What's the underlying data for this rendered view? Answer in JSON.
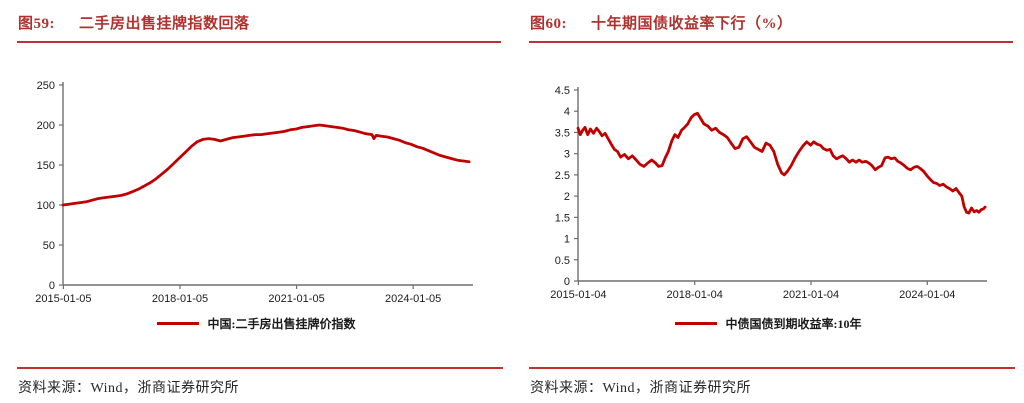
{
  "colors": {
    "accent": "#c00000",
    "title_red": "#b03230",
    "rule_red": "#bd3330",
    "axis": "#6e6e6e",
    "text": "#1c1c1c"
  },
  "figures": [
    {
      "fig_label": "图59:",
      "title": "二手房出售挂牌指数回落",
      "legend": "中国:二手房出售挂牌价指数",
      "source": "资料来源：Wind，浙商证券研究所"
    },
    {
      "fig_label": "图60:",
      "title": "十年期国债收益率下行（%）",
      "legend": "中债国债到期收益率:10年",
      "source": "资料来源：Wind，浙商证券研究所"
    }
  ],
  "chart_data": [
    {
      "type": "line",
      "title": "二手房出售挂牌指数回落",
      "xlabel": "",
      "ylabel": "",
      "grid": false,
      "legend_position": "bottom",
      "xlim": [
        2015.0,
        2025.55
      ],
      "ylim": [
        0,
        250
      ],
      "y_ticks": [
        0,
        50,
        100,
        150,
        200,
        250
      ],
      "x_ticks": [
        {
          "v": 2015.01,
          "label": "2015-01-05"
        },
        {
          "v": 2018.01,
          "label": "2018-01-05"
        },
        {
          "v": 2021.01,
          "label": "2021-01-05"
        },
        {
          "v": 2024.01,
          "label": "2024-01-05"
        }
      ],
      "series": [
        {
          "name": "中国:二手房出售挂牌价指数",
          "color": "#c00000",
          "points": [
            [
              2015.0,
              100
            ],
            [
              2015.15,
              101
            ],
            [
              2015.3,
              102
            ],
            [
              2015.45,
              103
            ],
            [
              2015.6,
              104
            ],
            [
              2015.75,
              106
            ],
            [
              2015.9,
              108
            ],
            [
              2016.05,
              109
            ],
            [
              2016.2,
              110
            ],
            [
              2016.35,
              111
            ],
            [
              2016.5,
              112
            ],
            [
              2016.65,
              114
            ],
            [
              2016.8,
              117
            ],
            [
              2016.95,
              120
            ],
            [
              2017.1,
              124
            ],
            [
              2017.25,
              128
            ],
            [
              2017.4,
              133
            ],
            [
              2017.55,
              139
            ],
            [
              2017.7,
              145
            ],
            [
              2017.85,
              152
            ],
            [
              2018.0,
              159
            ],
            [
              2018.15,
              166
            ],
            [
              2018.3,
              173
            ],
            [
              2018.45,
              179
            ],
            [
              2018.6,
              182
            ],
            [
              2018.75,
              183
            ],
            [
              2018.9,
              182
            ],
            [
              2019.05,
              180
            ],
            [
              2019.2,
              182
            ],
            [
              2019.35,
              184
            ],
            [
              2019.5,
              185
            ],
            [
              2019.65,
              186
            ],
            [
              2019.8,
              187
            ],
            [
              2019.95,
              188
            ],
            [
              2020.1,
              188
            ],
            [
              2020.25,
              189
            ],
            [
              2020.4,
              190
            ],
            [
              2020.55,
              191
            ],
            [
              2020.7,
              192
            ],
            [
              2020.85,
              194
            ],
            [
              2021.0,
              195
            ],
            [
              2021.15,
              197
            ],
            [
              2021.3,
              198
            ],
            [
              2021.45,
              199
            ],
            [
              2021.6,
              200
            ],
            [
              2021.75,
              199
            ],
            [
              2021.9,
              198
            ],
            [
              2022.05,
              197
            ],
            [
              2022.2,
              196
            ],
            [
              2022.35,
              194
            ],
            [
              2022.5,
              193
            ],
            [
              2022.65,
              191
            ],
            [
              2022.8,
              189
            ],
            [
              2022.95,
              188
            ],
            [
              2023.0,
              183
            ],
            [
              2023.06,
              187
            ],
            [
              2023.2,
              186
            ],
            [
              2023.35,
              185
            ],
            [
              2023.5,
              183
            ],
            [
              2023.65,
              181
            ],
            [
              2023.8,
              178
            ],
            [
              2023.95,
              176
            ],
            [
              2024.1,
              173
            ],
            [
              2024.25,
              171
            ],
            [
              2024.4,
              168
            ],
            [
              2024.55,
              165
            ],
            [
              2024.7,
              162
            ],
            [
              2024.85,
              160
            ],
            [
              2025.0,
              158
            ],
            [
              2025.15,
              156
            ],
            [
              2025.3,
              155
            ],
            [
              2025.45,
              154
            ]
          ]
        }
      ]
    },
    {
      "type": "line",
      "title": "十年期国债收益率下行（%）",
      "xlabel": "",
      "ylabel": "",
      "grid": false,
      "legend_position": "bottom",
      "xlim": [
        2015.0,
        2025.55
      ],
      "ylim": [
        0,
        4.5
      ],
      "y_ticks": [
        0,
        0.5,
        1,
        1.5,
        2,
        2.5,
        3,
        3.5,
        4,
        4.5
      ],
      "x_ticks": [
        {
          "v": 2015.01,
          "label": "2015-01-04"
        },
        {
          "v": 2018.01,
          "label": "2018-01-04"
        },
        {
          "v": 2021.01,
          "label": "2021-01-04"
        },
        {
          "v": 2024.01,
          "label": "2024-01-04"
        }
      ],
      "series": [
        {
          "name": "中债国债到期收益率:10年",
          "color": "#c00000",
          "points": [
            [
              2015.0,
              3.6
            ],
            [
              2015.06,
              3.45
            ],
            [
              2015.12,
              3.55
            ],
            [
              2015.18,
              3.62
            ],
            [
              2015.25,
              3.45
            ],
            [
              2015.32,
              3.58
            ],
            [
              2015.4,
              3.48
            ],
            [
              2015.48,
              3.6
            ],
            [
              2015.55,
              3.52
            ],
            [
              2015.62,
              3.42
            ],
            [
              2015.7,
              3.48
            ],
            [
              2015.78,
              3.35
            ],
            [
              2015.86,
              3.22
            ],
            [
              2015.94,
              3.1
            ],
            [
              2016.02,
              3.05
            ],
            [
              2016.1,
              2.92
            ],
            [
              2016.2,
              2.98
            ],
            [
              2016.3,
              2.88
            ],
            [
              2016.4,
              2.95
            ],
            [
              2016.5,
              2.85
            ],
            [
              2016.6,
              2.75
            ],
            [
              2016.7,
              2.7
            ],
            [
              2016.8,
              2.78
            ],
            [
              2016.9,
              2.85
            ],
            [
              2017.0,
              2.78
            ],
            [
              2017.08,
              2.7
            ],
            [
              2017.17,
              2.72
            ],
            [
              2017.25,
              2.9
            ],
            [
              2017.33,
              3.05
            ],
            [
              2017.42,
              3.3
            ],
            [
              2017.5,
              3.45
            ],
            [
              2017.58,
              3.38
            ],
            [
              2017.67,
              3.55
            ],
            [
              2017.75,
              3.62
            ],
            [
              2017.83,
              3.7
            ],
            [
              2017.92,
              3.85
            ],
            [
              2018.0,
              3.92
            ],
            [
              2018.08,
              3.95
            ],
            [
              2018.15,
              3.85
            ],
            [
              2018.25,
              3.7
            ],
            [
              2018.35,
              3.65
            ],
            [
              2018.45,
              3.55
            ],
            [
              2018.55,
              3.6
            ],
            [
              2018.65,
              3.5
            ],
            [
              2018.75,
              3.45
            ],
            [
              2018.85,
              3.38
            ],
            [
              2018.95,
              3.25
            ],
            [
              2019.05,
              3.12
            ],
            [
              2019.15,
              3.15
            ],
            [
              2019.25,
              3.35
            ],
            [
              2019.35,
              3.4
            ],
            [
              2019.45,
              3.28
            ],
            [
              2019.55,
              3.15
            ],
            [
              2019.65,
              3.1
            ],
            [
              2019.75,
              3.05
            ],
            [
              2019.85,
              3.25
            ],
            [
              2019.95,
              3.2
            ],
            [
              2020.05,
              3.05
            ],
            [
              2020.15,
              2.75
            ],
            [
              2020.25,
              2.55
            ],
            [
              2020.32,
              2.5
            ],
            [
              2020.4,
              2.58
            ],
            [
              2020.5,
              2.72
            ],
            [
              2020.6,
              2.9
            ],
            [
              2020.7,
              3.05
            ],
            [
              2020.8,
              3.18
            ],
            [
              2020.9,
              3.28
            ],
            [
              2021.0,
              3.2
            ],
            [
              2021.08,
              3.28
            ],
            [
              2021.17,
              3.22
            ],
            [
              2021.25,
              3.2
            ],
            [
              2021.33,
              3.12
            ],
            [
              2021.42,
              3.08
            ],
            [
              2021.5,
              3.1
            ],
            [
              2021.58,
              2.95
            ],
            [
              2021.67,
              2.88
            ],
            [
              2021.75,
              2.92
            ],
            [
              2021.83,
              2.95
            ],
            [
              2021.92,
              2.88
            ],
            [
              2022.0,
              2.8
            ],
            [
              2022.08,
              2.85
            ],
            [
              2022.17,
              2.8
            ],
            [
              2022.25,
              2.85
            ],
            [
              2022.33,
              2.8
            ],
            [
              2022.42,
              2.82
            ],
            [
              2022.5,
              2.78
            ],
            [
              2022.58,
              2.72
            ],
            [
              2022.67,
              2.62
            ],
            [
              2022.75,
              2.68
            ],
            [
              2022.83,
              2.72
            ],
            [
              2022.92,
              2.9
            ],
            [
              2023.0,
              2.92
            ],
            [
              2023.08,
              2.88
            ],
            [
              2023.17,
              2.9
            ],
            [
              2023.25,
              2.82
            ],
            [
              2023.33,
              2.78
            ],
            [
              2023.42,
              2.72
            ],
            [
              2023.5,
              2.65
            ],
            [
              2023.58,
              2.62
            ],
            [
              2023.67,
              2.68
            ],
            [
              2023.75,
              2.7
            ],
            [
              2023.83,
              2.65
            ],
            [
              2023.92,
              2.58
            ],
            [
              2024.0,
              2.48
            ],
            [
              2024.08,
              2.4
            ],
            [
              2024.17,
              2.32
            ],
            [
              2024.25,
              2.3
            ],
            [
              2024.33,
              2.25
            ],
            [
              2024.42,
              2.28
            ],
            [
              2024.5,
              2.22
            ],
            [
              2024.58,
              2.18
            ],
            [
              2024.67,
              2.12
            ],
            [
              2024.75,
              2.18
            ],
            [
              2024.83,
              2.08
            ],
            [
              2024.9,
              2.0
            ],
            [
              2024.96,
              1.75
            ],
            [
              2025.02,
              1.62
            ],
            [
              2025.08,
              1.6
            ],
            [
              2025.15,
              1.72
            ],
            [
              2025.22,
              1.63
            ],
            [
              2025.28,
              1.66
            ],
            [
              2025.34,
              1.62
            ],
            [
              2025.4,
              1.68
            ],
            [
              2025.46,
              1.7
            ],
            [
              2025.5,
              1.74
            ]
          ]
        }
      ]
    }
  ]
}
